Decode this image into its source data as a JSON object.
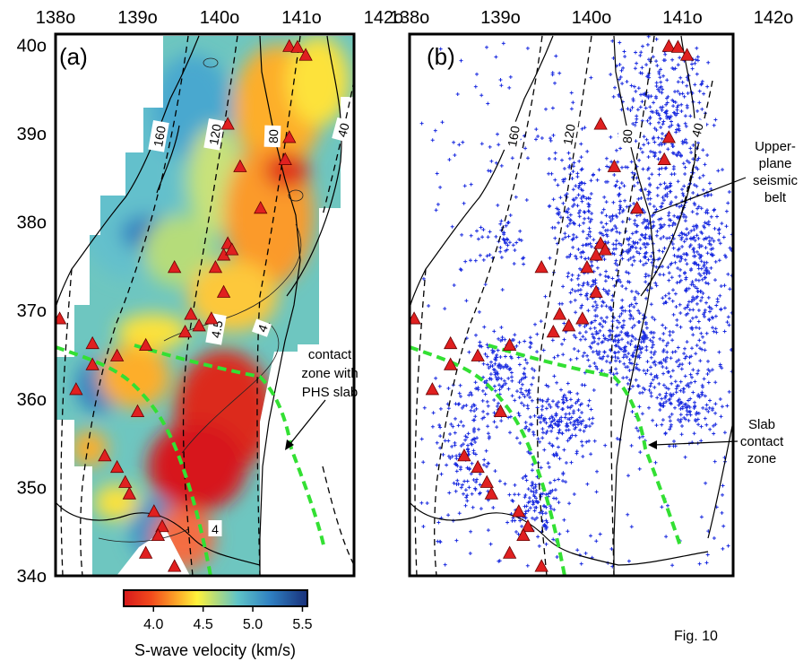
{
  "figure_label": "Fig. 10",
  "chart_data": [
    {
      "type": "heatmap",
      "panel_label": "(a)",
      "xaxis": {
        "ticks": [
          138,
          139,
          140,
          141,
          142
        ],
        "tick_labels": [
          "138o",
          "139o",
          "140o",
          "141o",
          "142o"
        ],
        "range": [
          138,
          142.6
        ]
      },
      "yaxis": {
        "ticks": [
          34,
          35,
          36,
          37,
          38,
          39,
          40
        ],
        "tick_labels": [
          "34o",
          "35o",
          "36o",
          "37o",
          "38o",
          "39o",
          "40o"
        ],
        "range": [
          34,
          40.2
        ]
      },
      "depth_contour_labels": [
        "160",
        "120",
        "80",
        "40"
      ],
      "velocity_contour_labels": [
        "4.5",
        "4",
        "4"
      ],
      "annotations": [
        {
          "text_lines": [
            "contact",
            "zone with",
            "PHS slab"
          ]
        }
      ],
      "volcanoes": [
        [
          140.85,
          39.98
        ],
        [
          140.95,
          39.97
        ],
        [
          141.05,
          39.88
        ],
        [
          140.1,
          39.1
        ],
        [
          140.85,
          38.95
        ],
        [
          140.8,
          38.7
        ],
        [
          140.25,
          38.62
        ],
        [
          140.5,
          38.15
        ],
        [
          140.05,
          37.62
        ],
        [
          140.1,
          37.75
        ],
        [
          140.15,
          37.68
        ],
        [
          139.45,
          37.48
        ],
        [
          139.95,
          37.48
        ],
        [
          140.05,
          37.2
        ],
        [
          139.65,
          36.95
        ],
        [
          139.75,
          36.82
        ],
        [
          139.58,
          36.75
        ],
        [
          139.9,
          36.9
        ],
        [
          138.05,
          36.9
        ],
        [
          138.45,
          36.62
        ],
        [
          138.45,
          36.38
        ],
        [
          138.75,
          36.48
        ],
        [
          139.1,
          36.6
        ],
        [
          139.0,
          35.85
        ],
        [
          138.25,
          36.1
        ],
        [
          138.6,
          35.35
        ],
        [
          138.75,
          35.22
        ],
        [
          138.9,
          34.92
        ],
        [
          139.2,
          34.72
        ],
        [
          139.3,
          34.55
        ],
        [
          139.25,
          34.45
        ],
        [
          139.1,
          34.25
        ],
        [
          139.45,
          34.1
        ],
        [
          138.85,
          35.05
        ]
      ],
      "colorbar": {
        "ticks": [
          "4.0",
          "4.5",
          "5.0",
          "5.5"
        ],
        "range": [
          3.7,
          5.55
        ],
        "label": "S-wave velocity (km/s)"
      }
    },
    {
      "type": "scatter",
      "panel_label": "(b)",
      "xaxis": {
        "ticks": [
          138,
          139,
          140,
          141,
          142
        ],
        "tick_labels": [
          "138o",
          "139o",
          "140o",
          "141o",
          "142o"
        ],
        "range": [
          138,
          142.6
        ]
      },
      "yaxis": {
        "range": [
          34,
          40.2
        ]
      },
      "depth_contour_labels": [
        "160",
        "120",
        "80",
        "40"
      ],
      "annotations": [
        {
          "text_lines": [
            "Upper-",
            "plane",
            "seismic",
            "belt"
          ]
        },
        {
          "text_lines": [
            "Slab",
            "contact",
            "zone"
          ]
        }
      ],
      "volcanoes": [
        [
          140.85,
          39.98
        ],
        [
          140.95,
          39.97
        ],
        [
          141.05,
          39.88
        ],
        [
          140.1,
          39.1
        ],
        [
          140.85,
          38.95
        ],
        [
          140.8,
          38.7
        ],
        [
          140.25,
          38.62
        ],
        [
          140.5,
          38.15
        ],
        [
          140.05,
          37.62
        ],
        [
          140.1,
          37.75
        ],
        [
          140.15,
          37.68
        ],
        [
          139.45,
          37.48
        ],
        [
          139.95,
          37.48
        ],
        [
          140.05,
          37.2
        ],
        [
          139.65,
          36.95
        ],
        [
          139.75,
          36.82
        ],
        [
          139.58,
          36.75
        ],
        [
          139.9,
          36.9
        ],
        [
          138.05,
          36.9
        ],
        [
          138.45,
          36.62
        ],
        [
          138.45,
          36.38
        ],
        [
          138.75,
          36.48
        ],
        [
          139.1,
          36.6
        ],
        [
          139.0,
          35.85
        ],
        [
          138.25,
          36.1
        ],
        [
          138.6,
          35.35
        ],
        [
          138.75,
          35.22
        ],
        [
          138.9,
          34.92
        ],
        [
          139.2,
          34.72
        ],
        [
          139.3,
          34.55
        ],
        [
          139.25,
          34.45
        ],
        [
          139.1,
          34.25
        ],
        [
          139.45,
          34.1
        ],
        [
          138.85,
          35.05
        ]
      ]
    }
  ]
}
